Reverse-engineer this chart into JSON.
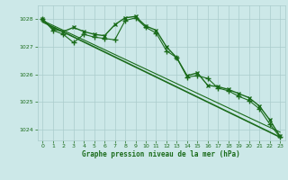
{
  "bg_color": "#cce8e8",
  "grid_color": "#aacccc",
  "line_color": "#1a6b1a",
  "title": "Graphe pression niveau de la mer (hPa)",
  "xlim": [
    -0.5,
    23.5
  ],
  "ylim": [
    1023.6,
    1028.5
  ],
  "yticks": [
    1024,
    1025,
    1026,
    1027,
    1028
  ],
  "xticks": [
    0,
    1,
    2,
    3,
    4,
    5,
    6,
    7,
    8,
    9,
    10,
    11,
    12,
    13,
    14,
    15,
    16,
    17,
    18,
    19,
    20,
    21,
    22,
    23
  ],
  "series": [
    {
      "x": [
        0,
        1,
        2,
        3,
        4,
        5,
        6,
        7,
        8,
        9,
        10,
        11,
        12,
        13,
        14,
        15,
        16,
        17,
        18,
        19,
        20,
        21,
        22,
        23
      ],
      "y": [
        1028.0,
        1027.65,
        1027.55,
        1027.7,
        1027.55,
        1027.45,
        1027.4,
        1027.8,
        1028.05,
        1028.1,
        1027.75,
        1027.6,
        1027.0,
        1026.6,
        1025.95,
        1026.05,
        1025.6,
        1025.55,
        1025.45,
        1025.3,
        1025.15,
        1024.85,
        1024.35,
        1023.75
      ],
      "marker": "x",
      "lw": 1.0,
      "ms": 3.5,
      "mew": 1.0
    },
    {
      "x": [
        0,
        1,
        2,
        3,
        4,
        5,
        6,
        7,
        8,
        9,
        10,
        11,
        12,
        13,
        14,
        15,
        16,
        17,
        18,
        19,
        20,
        21,
        22,
        23
      ],
      "y": [
        1028.0,
        1027.6,
        1027.45,
        1027.15,
        1027.45,
        1027.35,
        1027.3,
        1027.25,
        1027.95,
        1028.05,
        1027.7,
        1027.5,
        1026.85,
        1026.6,
        1025.9,
        1025.95,
        1025.85,
        1025.5,
        1025.4,
        1025.2,
        1025.05,
        1024.75,
        1024.2,
        1023.72
      ],
      "marker": "+",
      "lw": 0.8,
      "ms": 4.0,
      "mew": 1.0
    },
    {
      "x": [
        0,
        23
      ],
      "y": [
        1027.9,
        1023.72
      ],
      "marker": null,
      "lw": 1.2,
      "ms": 0,
      "mew": 0
    },
    {
      "x": [
        0,
        23
      ],
      "y": [
        1027.95,
        1023.9
      ],
      "marker": null,
      "lw": 0.8,
      "ms": 0,
      "mew": 0
    }
  ]
}
